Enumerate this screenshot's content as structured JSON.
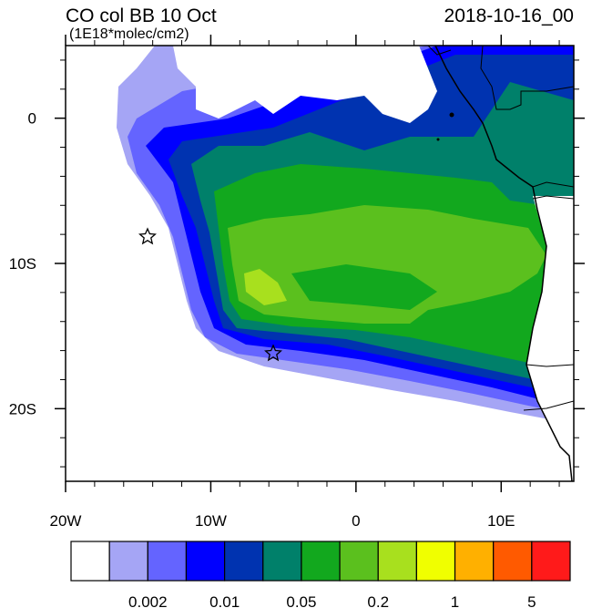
{
  "title": "CO col BB 10 Oct",
  "units": "(1E18*molec/cm2)",
  "time": "2018-10-16_00",
  "map": {
    "lonlim": [
      -20,
      15
    ],
    "latlim": [
      -25,
      5
    ],
    "lon_ticks": [
      {
        "value": -20,
        "label": "20W"
      },
      {
        "value": -10,
        "label": "10W"
      },
      0,
      {
        "value": 10,
        "label": "10E"
      }
    ],
    "lat_ticks": [
      0,
      {
        "value": -10,
        "label": "10S"
      },
      {
        "value": -20,
        "label": "20S"
      }
    ],
    "lon_minor_ticks": [
      -18,
      -16,
      -14,
      -12,
      -8,
      -6,
      -4,
      -2,
      2,
      4,
      6,
      8,
      12,
      14
    ],
    "lat_minor_ticks": [
      4,
      2,
      -2,
      -4,
      -6,
      -8,
      -12,
      -14,
      -16,
      -18,
      -22,
      -24
    ]
  },
  "colorbar": {
    "colors": [
      "#ffffff",
      "#a5a5f5",
      "#6464ff",
      "#0000ff",
      "#0033b0",
      "#00806a",
      "#12a81e",
      "#5bc01e",
      "#a8e01e",
      "#f0ff00",
      "#ffb000",
      "#ff5a00",
      "#ff1a1a"
    ],
    "labels": [
      0.002,
      0.01,
      0.05,
      0.2,
      1,
      5
    ]
  }
}
